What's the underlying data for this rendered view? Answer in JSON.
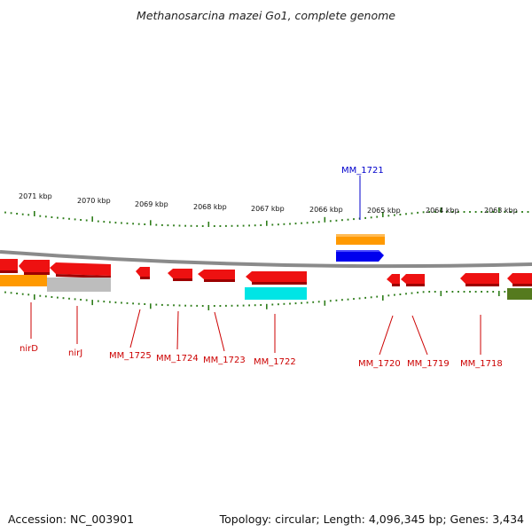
{
  "title": "Methanosarcina mazei Go1, complete genome",
  "footer": {
    "accession": "Accession: NC_003901",
    "summary": "Topology: circular; Length: 4,096,345 bp; Genes: 3,434"
  },
  "scale_labels": [
    "2071 kbp",
    "2070 kbp",
    "2069 kbp",
    "2068 kbp",
    "2067 kbp",
    "2066 kbp",
    "2065 kbp",
    "2064 kbp",
    "2063 kbp"
  ],
  "gene_labels": {
    "nirD": "nirD",
    "nirJ": "nirJ",
    "mm1725": "MM_1725",
    "mm1724": "MM_1724",
    "mm1723": "MM_1723",
    "mm1722": "MM_1722",
    "mm1721": "MM_1721",
    "mm1720": "MM_1720",
    "mm1719": "MM_1719",
    "mm1718": "MM_1718"
  },
  "colors": {
    "backbone": "#888888",
    "tick": "#2e7d1a",
    "gene_red": "#ee1111",
    "gene_orange": "#ff9900",
    "gene_gray": "#bbbbbb",
    "gene_blue": "#0000ee",
    "gene_cyan": "#00e5e5",
    "gene_olive": "#557a1e",
    "label_red": "#cc0000",
    "label_blue": "#0000cc"
  }
}
